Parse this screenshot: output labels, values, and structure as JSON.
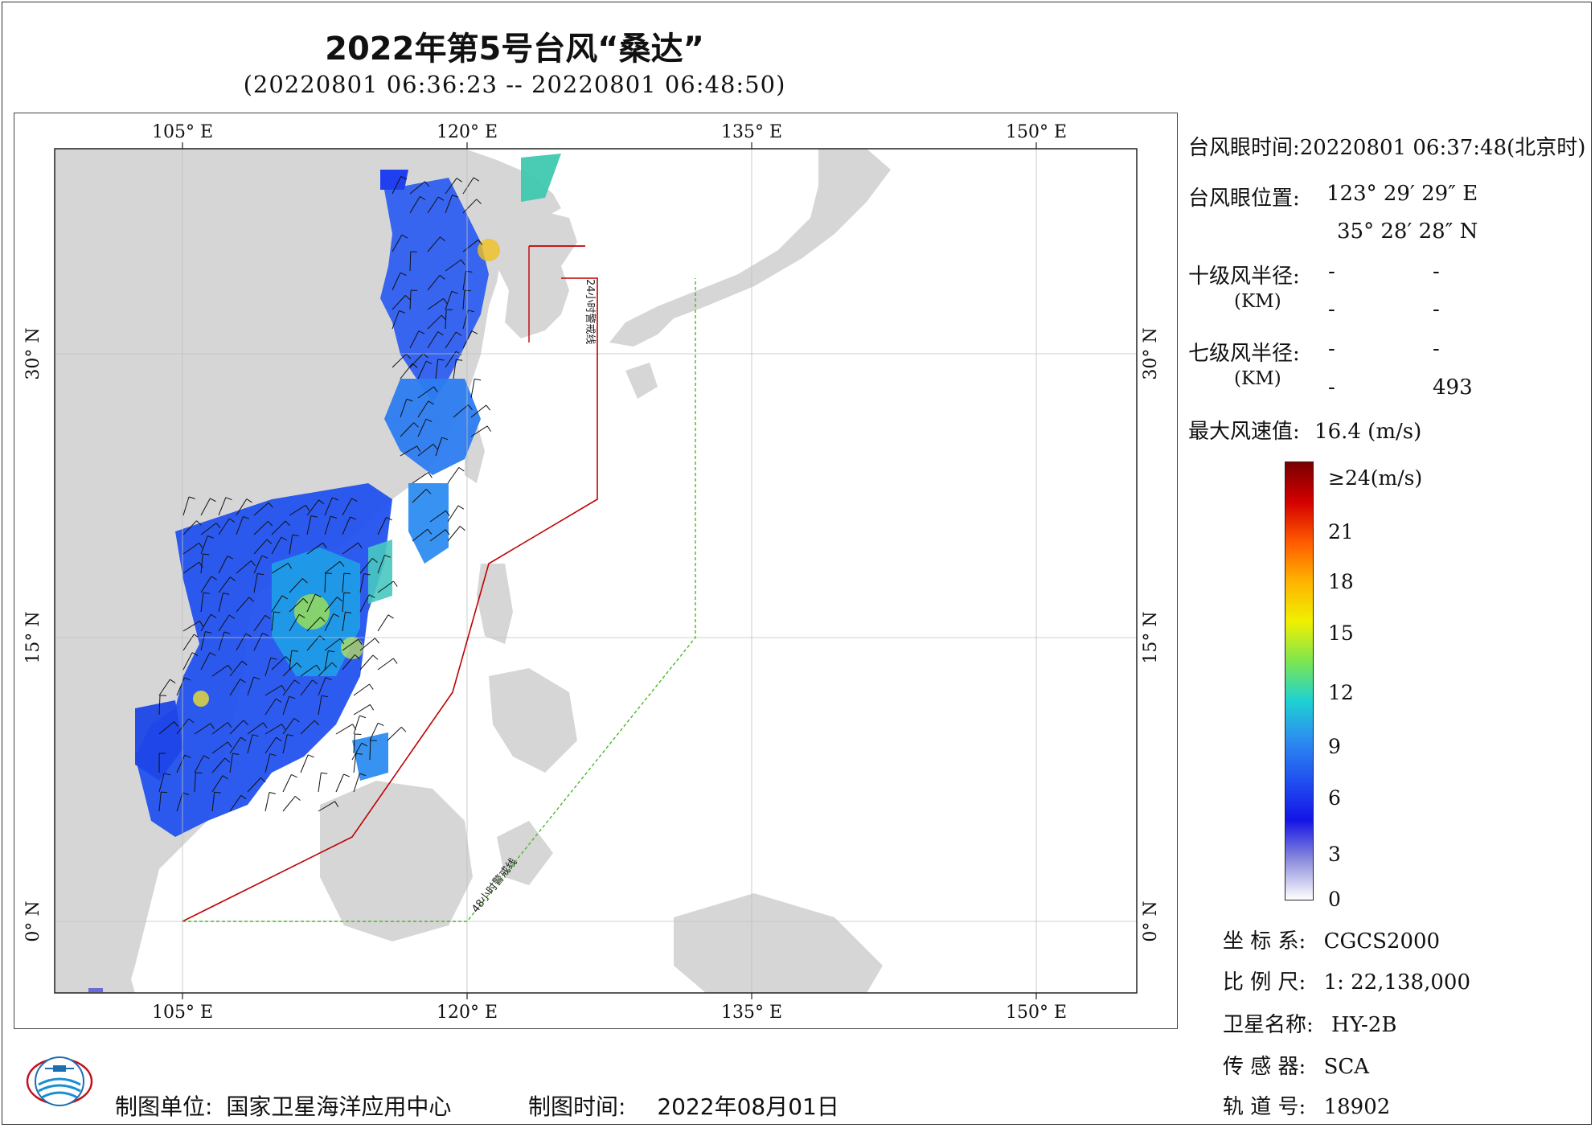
{
  "title": "2022年第5号台风“桑达”",
  "subtitle": "(20220801 06:36:23 -- 20220801 06:48:50)",
  "axes": {
    "lon_labels": [
      "105° E",
      "120° E",
      "135° E",
      "150° E"
    ],
    "lat_labels": [
      "30° N",
      "15° N",
      "0° N"
    ]
  },
  "warning_lines": {
    "line24": "24小时警戒线",
    "line48": "48小时警戒线"
  },
  "info": {
    "eye_time_label": "台风眼时间:",
    "eye_time_value": "20220801 06:37:48(北京时)",
    "eye_pos_label": "台风眼位置:",
    "eye_lon": "123° 29′ 29″ E",
    "eye_lat": "35° 28′ 28″ N",
    "r10_label": "十级风半径:",
    "r10_unit": "(KM)",
    "r10_values": [
      "-",
      "-",
      "-",
      "-"
    ],
    "r7_label": "七级风半径:",
    "r7_unit": "(KM)",
    "r7_values": [
      "-",
      "-",
      "-",
      "493"
    ],
    "max_wind_label": "最大风速值:",
    "max_wind_value": "16.4  (m/s)"
  },
  "colorbar": {
    "labels": [
      "≥24(m/s)",
      "21",
      "18",
      "15",
      "12",
      "9",
      "6",
      "3",
      "0"
    ],
    "colors": [
      "#7a0000",
      "#d40000",
      "#ff5a00",
      "#ffb400",
      "#f0f000",
      "#7de650",
      "#1ed2d2",
      "#2c8cf0",
      "#2050f0",
      "#1414e6",
      "#8c8cdc",
      "#ffffff"
    ]
  },
  "meta": {
    "crs_label": "坐 标 系:",
    "crs_value": "CGCS2000",
    "scale_label": "比 例 尺:",
    "scale_value": "1: 22,138,000",
    "sat_label": "卫星名称:",
    "sat_value": "HY-2B",
    "sensor_label": "传 感 器:",
    "sensor_value": "SCA",
    "orbit_label": "轨 道 号:",
    "orbit_value": "18902"
  },
  "footer": {
    "unit_label": "制图单位:",
    "unit_value": "国家卫星海洋应用中心",
    "date_label": "制图时间:",
    "date_value": "2022年08月01日"
  },
  "logo": {
    "text": "国家卫星海洋应用中心"
  }
}
